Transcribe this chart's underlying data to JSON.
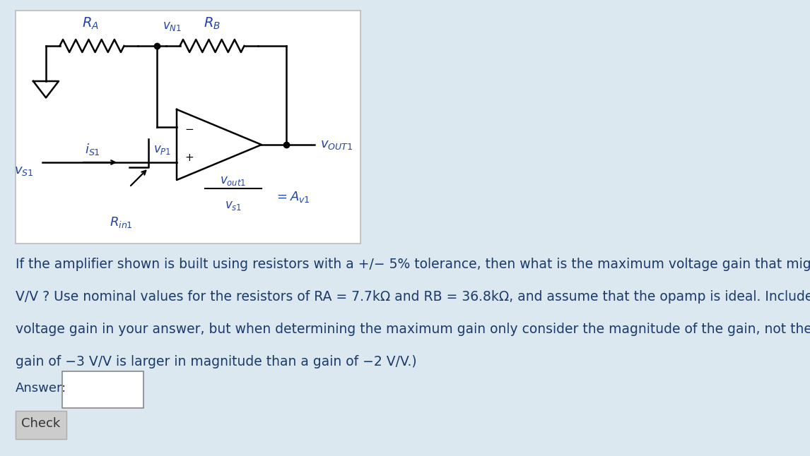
{
  "bg_color": "#dce8f0",
  "text_color": "#1a3a6b",
  "text_color_circ": "#2244aa",
  "question_text_line1": "If the amplifier shown is built using resistors with a +/− 5% tolerance, then what is the maximum voltage gain that might be measured in",
  "question_text_line2": "V/V ? Use nominal values for the resistors of RA = 7.7kΩ and RB = 36.8kΩ, and assume that the opamp is ideal. Include the sign of the",
  "question_text_line3": "voltage gain in your answer, but when determining the maximum gain only consider the magnitude of the gain, not the phase. (e.g., A",
  "question_text_line4": "gain of −3 V/V is larger in magnitude than a gain of −2 V/V.)",
  "answer_label": "Answer:",
  "check_label": "Check",
  "font_size_question": 13.5,
  "font_size_labels": 13,
  "fig_width": 11.46,
  "fig_height": 6.46,
  "dpi": 100
}
